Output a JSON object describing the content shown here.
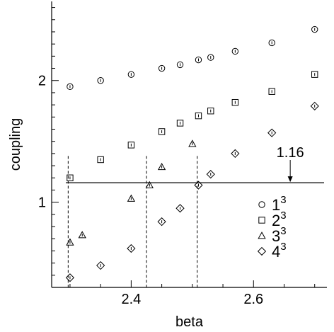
{
  "chart_data": {
    "type": "scatter",
    "xlabel": "beta",
    "ylabel": "coupling",
    "xlim": [
      2.27,
      2.72
    ],
    "ylim": [
      0.3,
      2.65
    ],
    "x_ticks": [
      2.4,
      2.6
    ],
    "x_tick_labels": [
      "2.4",
      "2.6"
    ],
    "y_ticks": [
      1,
      2
    ],
    "y_tick_labels": [
      "1",
      "2"
    ],
    "grid": false,
    "legend_position": "right",
    "series": [
      {
        "name": "1",
        "name_superscript": "3",
        "marker": "circle",
        "x": [
          2.3,
          2.35,
          2.4,
          2.45,
          2.48,
          2.51,
          2.53,
          2.57,
          2.63,
          2.7
        ],
        "y": [
          1.95,
          2.0,
          2.05,
          2.1,
          2.13,
          2.17,
          2.19,
          2.24,
          2.31,
          2.42
        ]
      },
      {
        "name": "2",
        "name_superscript": "3",
        "marker": "square",
        "x": [
          2.3,
          2.35,
          2.4,
          2.45,
          2.48,
          2.51,
          2.53,
          2.57,
          2.63,
          2.7
        ],
        "y": [
          1.2,
          1.35,
          1.47,
          1.58,
          1.65,
          1.71,
          1.75,
          1.82,
          1.91,
          2.05
        ]
      },
      {
        "name": "3",
        "name_superscript": "3",
        "marker": "triangle",
        "x": [
          2.3,
          2.32,
          2.4,
          2.43,
          2.45,
          2.5
        ],
        "y": [
          0.67,
          0.73,
          1.03,
          1.14,
          1.29,
          1.48
        ]
      },
      {
        "name": "4",
        "name_superscript": "3",
        "marker": "diamond",
        "x": [
          2.3,
          2.35,
          2.4,
          2.45,
          2.48,
          2.51,
          2.53,
          2.57,
          2.63,
          2.7
        ],
        "y": [
          0.38,
          0.48,
          0.62,
          0.84,
          0.95,
          1.14,
          1.23,
          1.4,
          1.57,
          1.79
        ]
      }
    ],
    "reference_line": {
      "y": 1.16,
      "label": "1.16"
    },
    "vertical_lines_x": [
      2.297,
      2.425,
      2.508
    ],
    "annotations": [
      {
        "text": "1.16",
        "arrow_x": 2.66,
        "arrow_to_y": 1.16
      }
    ]
  }
}
